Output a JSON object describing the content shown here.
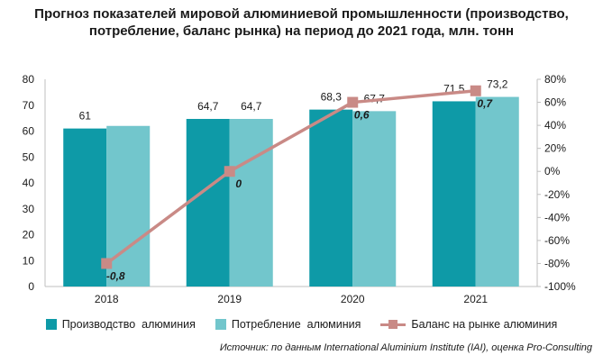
{
  "title": {
    "line1": "Прогноз показателей мировой алюминиевой промышленности (производство,",
    "line2": "потребление, баланс рынка) на период до 2021 года, млн. тонн"
  },
  "chart_data": {
    "type": "bar",
    "categories": [
      "2018",
      "2019",
      "2020",
      "2021"
    ],
    "series": [
      {
        "name": "Производство  алюминия",
        "kind": "bar",
        "axis": "left",
        "values": [
          61,
          64.7,
          68.3,
          71.5
        ],
        "labels": [
          "61",
          "64,7",
          "68,3",
          "71,5"
        ],
        "color": "#0e9aa7"
      },
      {
        "name": "Потребление  алюминия",
        "kind": "bar",
        "axis": "left",
        "values": [
          62,
          64.7,
          67.7,
          73.2
        ],
        "labels": [
          "",
          "64,7",
          "67,7",
          "73,2"
        ],
        "color": "#72c6cc"
      },
      {
        "name": "Баланс на рынке алюминия",
        "kind": "line",
        "axis": "right",
        "values": [
          -0.8,
          0,
          0.6,
          0.7
        ],
        "labels": [
          "-0,8",
          "0",
          "0,6",
          "0,7"
        ],
        "color": "#c98a86"
      }
    ],
    "left_axis": {
      "min": 0,
      "max": 80,
      "ticks": [
        "0",
        "10",
        "20",
        "30",
        "40",
        "50",
        "60",
        "70",
        "80"
      ]
    },
    "right_axis": {
      "min": -1,
      "max": 0.8,
      "ticks": [
        "-100%",
        "-80%",
        "-60%",
        "-40%",
        "-20%",
        "0%",
        "20%",
        "40%",
        "60%",
        "80%"
      ]
    },
    "legend_position": "bottom",
    "grid": false
  },
  "source": "Источник: по данным International Aluminium Institute (IAI), оценка Pro-Consulting"
}
